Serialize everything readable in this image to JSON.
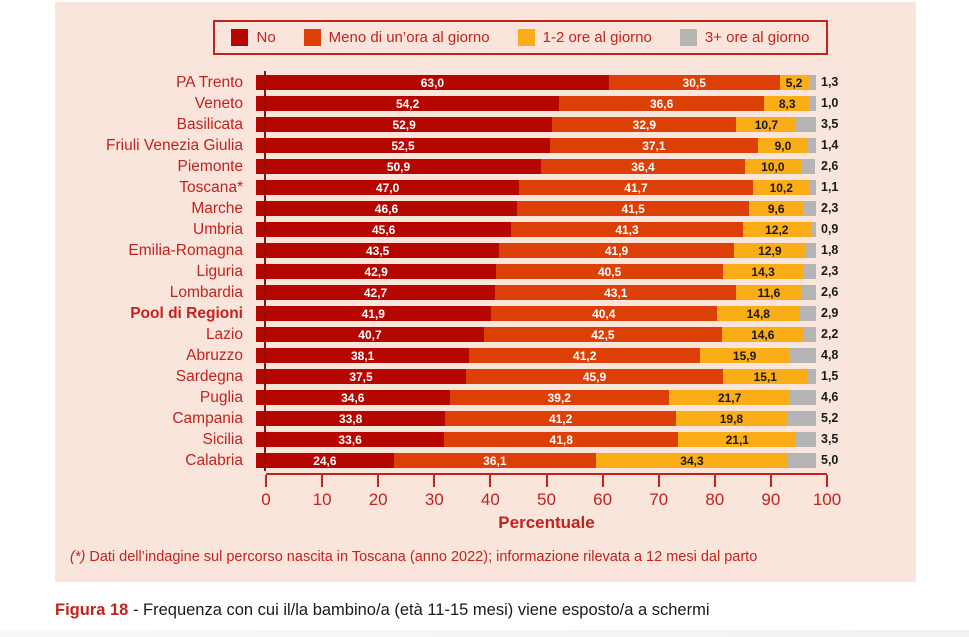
{
  "colors": {
    "panel_background": "#fae5dd",
    "accent_red": "#c2231b",
    "axis_dark_red": "#8e1008",
    "text_black": "#1a1a1a"
  },
  "chart_data": {
    "type": "bar",
    "orientation": "horizontal",
    "stacked": true,
    "xlabel": "Percentuale",
    "xlim": [
      0,
      100
    ],
    "x_ticks": [
      0,
      10,
      20,
      30,
      40,
      50,
      60,
      70,
      80,
      90,
      100
    ],
    "legend_position": "top",
    "grid": false,
    "categories": [
      "PA Trento",
      "Veneto",
      "Basilicata",
      "Friuli Venezia Giulia",
      "Piemonte",
      "Toscana*",
      "Marche",
      "Umbria",
      "Emilia-Romagna",
      "Liguria",
      "Lombardia",
      "Pool di Regioni",
      "Lazio",
      "Abruzzo",
      "Sardegna",
      "Puglia",
      "Campania",
      "Sicilia",
      "Calabria"
    ],
    "bold_categories": [
      "Pool di Regioni"
    ],
    "series": [
      {
        "name": "No",
        "color": "#b50600",
        "label_color": "#ffffff",
        "values": [
          63.0,
          54.2,
          52.9,
          52.5,
          50.9,
          47.0,
          46.6,
          45.6,
          43.5,
          42.9,
          42.7,
          41.9,
          40.7,
          38.1,
          37.5,
          34.6,
          33.8,
          33.6,
          24.6
        ]
      },
      {
        "name": "Meno di un’ora al giorno",
        "color": "#dd4007",
        "label_color": "#ffffff",
        "values": [
          30.5,
          36.6,
          32.9,
          37.1,
          36.4,
          41.7,
          41.5,
          41.3,
          41.9,
          40.5,
          43.1,
          40.4,
          42.5,
          41.2,
          45.9,
          39.2,
          41.2,
          41.8,
          36.1
        ]
      },
      {
        "name": "1-2 ore al giorno",
        "color": "#faad17",
        "label_color": "#1a1a1a",
        "values": [
          5.2,
          8.3,
          10.7,
          9.0,
          10.0,
          10.2,
          9.6,
          12.2,
          12.9,
          14.3,
          11.6,
          14.8,
          14.6,
          15.9,
          15.1,
          21.7,
          19.8,
          21.1,
          34.3
        ]
      },
      {
        "name": "3+ ore al giorno",
        "color": "#b5b5b5",
        "label_color": "#1a1a1a",
        "label_outside": true,
        "values": [
          1.3,
          1.0,
          3.5,
          1.4,
          2.6,
          1.1,
          2.3,
          0.9,
          1.8,
          2.3,
          2.6,
          2.9,
          2.2,
          4.8,
          1.5,
          4.6,
          5.2,
          3.5,
          5.0
        ]
      }
    ]
  },
  "footnote": {
    "marker": "(*)",
    "text": " Dati dell’indagine sul percorso nascita in Toscana (anno 2022); informazione rilevata a 12 mesi dal parto"
  },
  "caption": {
    "label": "Figura 18",
    "text": " - Frequenza con cui il/la bambino/a (età 11-15 mesi) viene esposto/a a schermi"
  }
}
